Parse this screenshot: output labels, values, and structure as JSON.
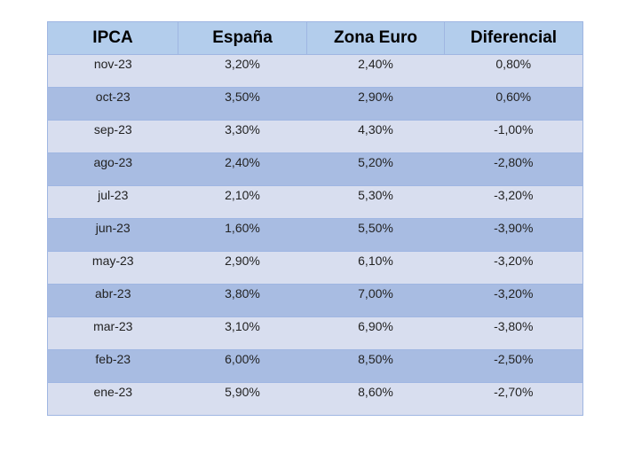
{
  "table": {
    "header": [
      "IPCA",
      "España",
      "Zona Euro",
      "Diferencial"
    ],
    "rows": [
      [
        "nov-23",
        "3,20%",
        "2,40%",
        "0,80%"
      ],
      [
        "oct-23",
        "3,50%",
        "2,90%",
        "0,60%"
      ],
      [
        "sep-23",
        "3,30%",
        "4,30%",
        "-1,00%"
      ],
      [
        "ago-23",
        "2,40%",
        "5,20%",
        "-2,80%"
      ],
      [
        "jul-23",
        "2,10%",
        "5,30%",
        "-3,20%"
      ],
      [
        "jun-23",
        "1,60%",
        "5,50%",
        "-3,90%"
      ],
      [
        "may-23",
        "2,90%",
        "6,10%",
        "-3,20%"
      ],
      [
        "abr-23",
        "3,80%",
        "7,00%",
        "-3,20%"
      ],
      [
        "mar-23",
        "3,10%",
        "6,90%",
        "-3,80%"
      ],
      [
        "feb-23",
        "6,00%",
        "8,50%",
        "-2,50%"
      ],
      [
        "ene-23",
        "5,90%",
        "8,60%",
        "-2,70%"
      ]
    ]
  }
}
